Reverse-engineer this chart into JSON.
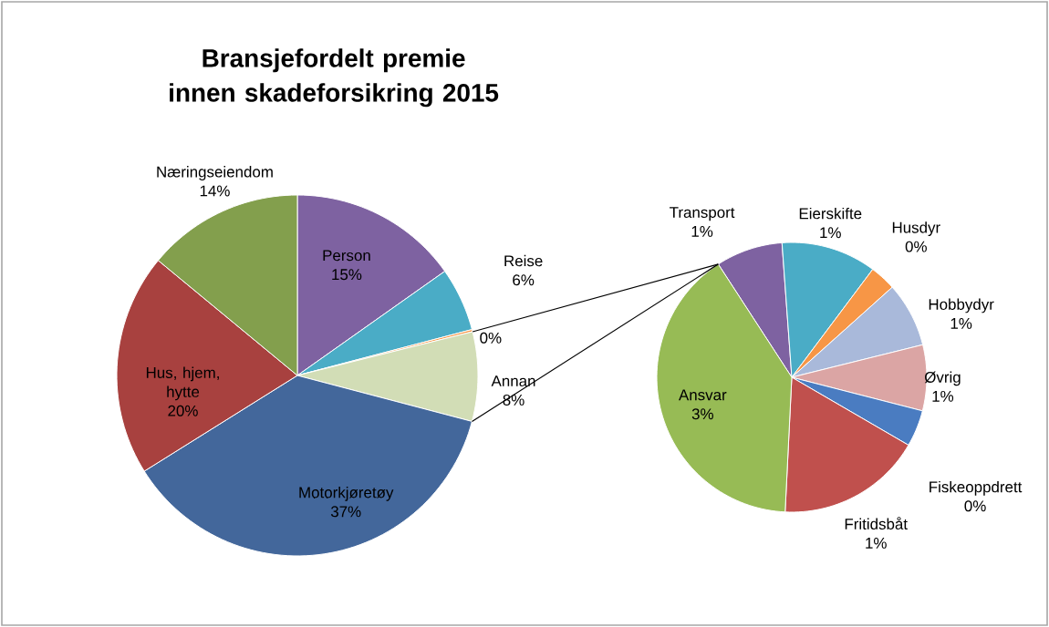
{
  "chart_data": [
    {
      "type": "pie",
      "title": "Bransjefordelt premie innen skadeforsikring 2015",
      "categories": [
        "Person",
        "Reise",
        null,
        "Annan",
        "Motorkjøretøy",
        "Hus, hjem, hytte",
        "Næringseiendom"
      ],
      "values": [
        15.2,
        5.7,
        0.2,
        8.0,
        37.0,
        19.9,
        14.0
      ],
      "value_labels": [
        "15%",
        "6%",
        "0%",
        "8%",
        "37%",
        "20%",
        "14%"
      ],
      "colors": [
        "#7e62a1",
        "#4aacc6",
        "#f79646",
        "#d2ddb6",
        "#43679b",
        "#a8413f",
        "#839f4d"
      ]
    },
    {
      "type": "pie",
      "categories": [
        "Transport",
        "Eierskifte",
        "Husdyr",
        "Hobbydyr",
        "Øvrig",
        "Fiskeoppdrett",
        "Fritidsbåt",
        "Ansvar"
      ],
      "values": [
        0.64,
        0.91,
        0.25,
        0.62,
        0.63,
        0.35,
        1.39,
        3.2
      ],
      "value_labels": [
        "1%",
        "1%",
        "0%",
        "1%",
        "1%",
        "0%",
        "1%",
        "3%"
      ],
      "colors": [
        "#7e62a1",
        "#4aacc6",
        "#f79646",
        "#a9b9da",
        "#dba5a4",
        "#4a7cc1",
        "#c0504d",
        "#97bb55"
      ]
    }
  ]
}
